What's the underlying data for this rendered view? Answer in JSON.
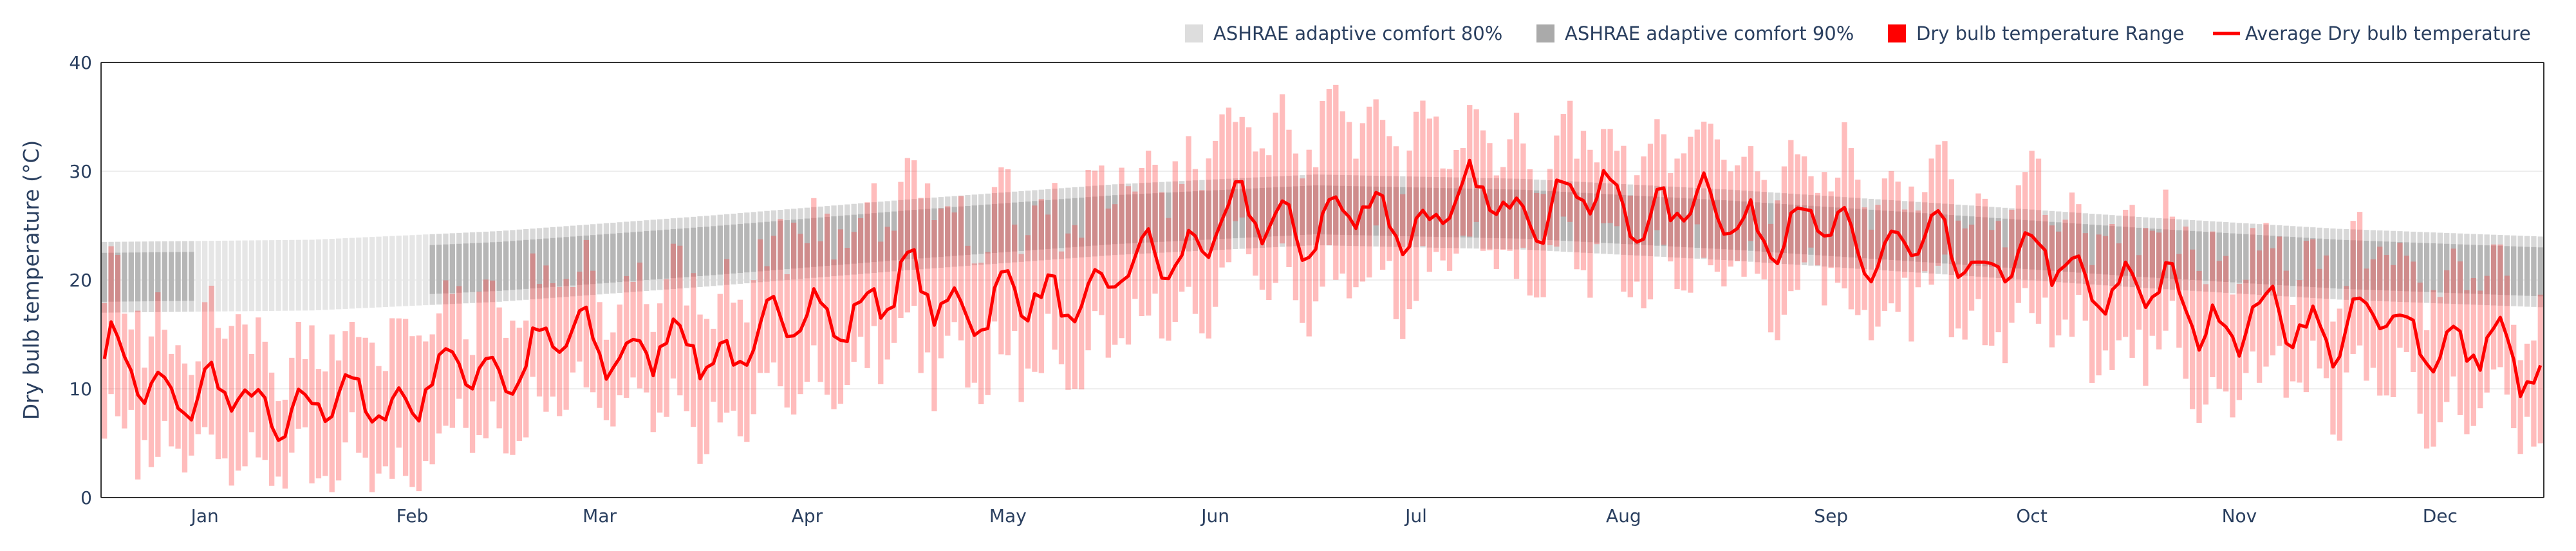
{
  "chart_data": {
    "type": "bar",
    "ylabel": "Dry bulb temperature (°C)",
    "xlabel": "",
    "ylim": [
      0,
      40
    ],
    "yticks": [
      0,
      10,
      20,
      30,
      40
    ],
    "grid": true,
    "legend_position": "top-right",
    "month_labels": [
      "Jan",
      "Feb",
      "Mar",
      "Apr",
      "May",
      "Jun",
      "Jul",
      "Aug",
      "Sep",
      "Oct",
      "Nov",
      "Dec"
    ],
    "legend": [
      {
        "key": "comfort80",
        "label": "ASHRAE adaptive comfort  80%",
        "color": "#dddddd",
        "shape": "square"
      },
      {
        "key": "comfort90",
        "label": "ASHRAE adaptive comfort  90%",
        "color": "#aaaaaa",
        "shape": "square"
      },
      {
        "key": "range",
        "label": "Dry bulb temperature Range",
        "color": "#ff0000",
        "shape": "square"
      },
      {
        "key": "avg",
        "label": "Average Dry bulb temperature",
        "color": "#ff0000",
        "shape": "line"
      }
    ],
    "series_notes": "Daily values for 365 days. avg = daily mean; range = [min,max] per day; comfort bands expressed as [low,high] in °C.",
    "avg_monthly_anchors": {
      "day": [
        0,
        15,
        31,
        45,
        59,
        74,
        90,
        105,
        120,
        135,
        151,
        166,
        181,
        196,
        212,
        227,
        243,
        258,
        273,
        288,
        304,
        319,
        334,
        349,
        364
      ],
      "value": [
        12.5,
        9.0,
        8.0,
        9.5,
        12.5,
        14.5,
        13.0,
        16.5,
        19.0,
        17.5,
        19.5,
        25.0,
        25.5,
        25.8,
        27.5,
        27.0,
        26.0,
        24.0,
        22.5,
        21.5,
        19.0,
        16.0,
        16.0,
        15.0,
        11.0
      ]
    },
    "comfort90_monthly": {
      "day": [
        0,
        31,
        59,
        90,
        120,
        151,
        181,
        212,
        243,
        273,
        304,
        334,
        364
      ],
      "low": [
        18.0,
        18.2,
        19.0,
        20.4,
        21.9,
        23.3,
        24.2,
        23.8,
        22.8,
        21.6,
        20.3,
        19.2,
        18.5
      ],
      "high": [
        22.5,
        22.7,
        23.5,
        24.9,
        26.4,
        27.8,
        28.7,
        28.3,
        27.3,
        26.1,
        24.8,
        23.7,
        23.0
      ]
    },
    "comfort80_offset": 1.0,
    "comfort80_light_days": [
      14,
      48
    ]
  }
}
